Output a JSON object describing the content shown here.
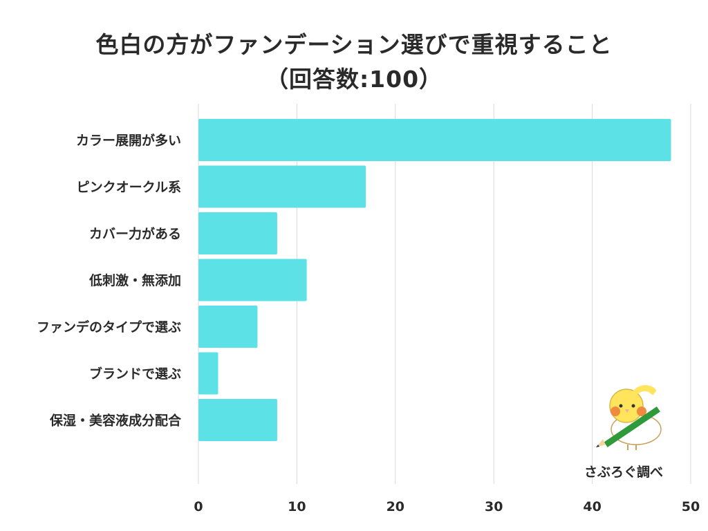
{
  "chart_data": {
    "type": "bar",
    "orientation": "horizontal",
    "title": "色白の方がファンデーション選びで重視すること",
    "subtitle": "（回答数:100）",
    "categories": [
      "カラー展開が多い",
      "ピンクオークル系",
      "カバー力がある",
      "低刺激・無添加",
      "ファンデのタイプで選ぶ",
      "ブランドで選ぶ",
      "保湿・美容液成分配合"
    ],
    "values": [
      48,
      17,
      8,
      11,
      6,
      2,
      8
    ],
    "xlim": [
      0,
      50
    ],
    "xticks": [
      0,
      10,
      20,
      30,
      40,
      50
    ],
    "xlabel": "",
    "ylabel": "",
    "grid": true,
    "bar_color": "#5ce1e6",
    "grid_color": "#d9d9d9"
  },
  "credit": {
    "text": "さぶろぐ調べ",
    "icon": "cockatiel-mascot-icon"
  }
}
